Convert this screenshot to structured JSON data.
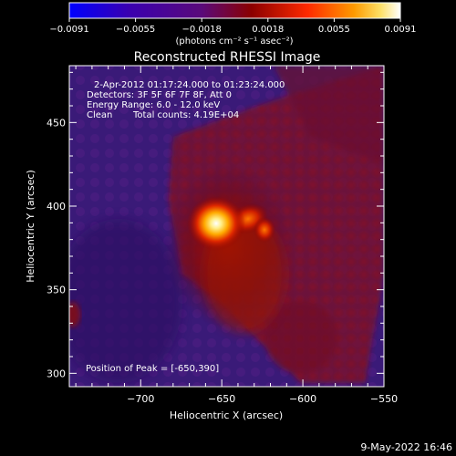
{
  "colorbar": {
    "ticks": [
      "−0.0091",
      "−0.0055",
      "−0.0018",
      "0.0018",
      "0.0055",
      "0.0091"
    ],
    "units": "(photons cm⁻² s⁻¹ asec⁻²)",
    "colors": [
      "#0000ff",
      "#4b0082",
      "#6a0dad",
      "#8b0000",
      "#ff3300",
      "#ff8800",
      "#ffdd55",
      "#ffffff"
    ]
  },
  "image": {
    "title": "Reconstructed RHESSI Image",
    "info_line1": "2-Apr-2012 01:17:24.000 to 01:23:24.000",
    "info_line2": "Detectors: 3F 5F 6F 7F 8F, Att 0",
    "info_line3": "Energy Range: 6.0 - 12.0 keV",
    "info_line4_a": "Clean",
    "info_line4_b": "Total counts: 4.19E+04",
    "peak_label": "Position of Peak = [-650,390]",
    "footer": "9-May-2022 16:46"
  },
  "chart_data": {
    "type": "heatmap",
    "title": "Reconstructed RHESSI Image",
    "xlabel": "Heliocentric X (arcsec)",
    "ylabel": "Heliocentric Y (arcsec)",
    "xlim": [
      -744,
      -550
    ],
    "ylim": [
      292,
      484
    ],
    "xticks": [
      -700,
      -650,
      -600,
      -550
    ],
    "xtick_labels": [
      "−700",
      "−650",
      "−600",
      "−550"
    ],
    "yticks": [
      300,
      350,
      400,
      450
    ],
    "ytick_labels": [
      "300",
      "350",
      "400",
      "450"
    ],
    "peak": {
      "x": -650,
      "y": 390
    },
    "value_range": [
      -0.0091,
      0.0091
    ]
  }
}
